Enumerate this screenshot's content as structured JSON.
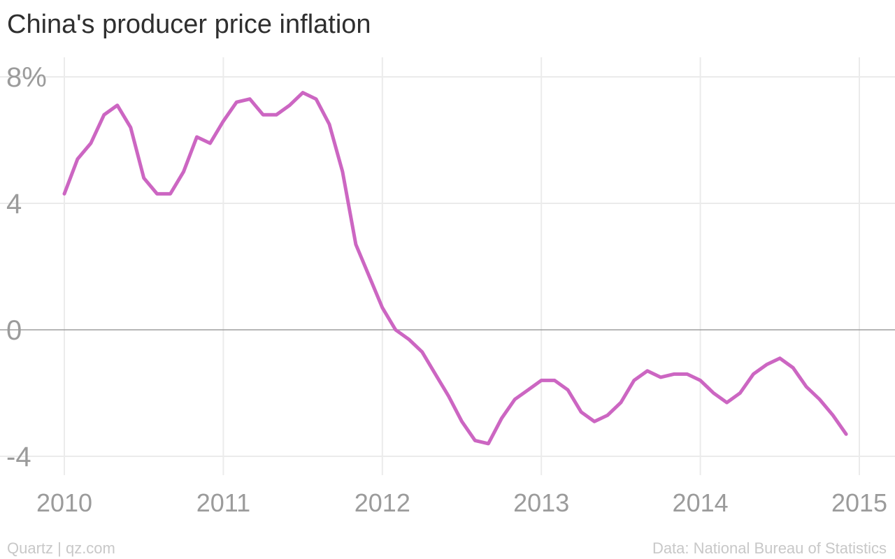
{
  "title": "China's producer price inflation",
  "footer": {
    "credit": "Quartz | qz.com",
    "source": "Data: National Bureau of Statistics"
  },
  "colors": {
    "line": "#cc66c2",
    "grid": "#ebebeb",
    "zero_line": "#9e9e9e",
    "tick_text": "#9b9b9b",
    "title_text": "#2f2f2f",
    "footer_text": "#c8c8c8"
  },
  "chart_data": {
    "type": "line",
    "title": "China's producer price inflation",
    "xlabel": "",
    "ylabel": "",
    "xlim": [
      2010.0,
      2015.0
    ],
    "ylim": [
      -4.7,
      8.0
    ],
    "grid": true,
    "legend": "none",
    "x_ticks": [
      {
        "value": 2010,
        "label": "2010"
      },
      {
        "value": 2011,
        "label": "2011"
      },
      {
        "value": 2012,
        "label": "2012"
      },
      {
        "value": 2013,
        "label": "2013"
      },
      {
        "value": 2014,
        "label": "2014"
      },
      {
        "value": 2015,
        "label": "2015"
      }
    ],
    "y_ticks": [
      {
        "value": 8,
        "label": "8%"
      },
      {
        "value": 4,
        "label": "4"
      },
      {
        "value": 0,
        "label": "0"
      },
      {
        "value": -4,
        "label": "-4"
      }
    ],
    "series": [
      {
        "x": [
          "2010-01",
          "2010-02",
          "2010-03",
          "2010-04",
          "2010-05",
          "2010-06",
          "2010-07",
          "2010-08",
          "2010-09",
          "2010-10",
          "2010-11",
          "2010-12",
          "2011-01",
          "2011-02",
          "2011-03",
          "2011-04",
          "2011-05",
          "2011-06",
          "2011-07",
          "2011-08",
          "2011-09",
          "2011-10",
          "2011-11",
          "2011-12",
          "2012-01",
          "2012-02",
          "2012-03",
          "2012-04",
          "2012-05",
          "2012-06",
          "2012-07",
          "2012-08",
          "2012-09",
          "2012-10",
          "2012-11",
          "2012-12",
          "2013-01",
          "2013-02",
          "2013-03",
          "2013-04",
          "2013-05",
          "2013-06",
          "2013-07",
          "2013-08",
          "2013-09",
          "2013-10",
          "2013-11",
          "2013-12",
          "2014-01",
          "2014-02",
          "2014-03",
          "2014-04",
          "2014-05",
          "2014-06",
          "2014-07",
          "2014-08",
          "2014-09",
          "2014-10",
          "2014-11",
          "2014-12"
        ],
        "values": [
          4.3,
          5.4,
          5.9,
          6.8,
          7.1,
          6.4,
          4.8,
          4.3,
          4.3,
          5.0,
          6.1,
          5.9,
          6.6,
          7.2,
          7.3,
          6.8,
          6.8,
          7.1,
          7.5,
          7.3,
          6.5,
          5.0,
          2.7,
          1.7,
          0.7,
          0.0,
          -0.3,
          -0.7,
          -1.4,
          -2.1,
          -2.9,
          -3.5,
          -3.6,
          -2.8,
          -2.2,
          -1.9,
          -1.6,
          -1.6,
          -1.9,
          -2.6,
          -2.9,
          -2.7,
          -2.3,
          -1.6,
          -1.3,
          -1.5,
          -1.4,
          -1.4,
          -1.6,
          -2.0,
          -2.3,
          -2.0,
          -1.4,
          -1.1,
          -0.9,
          -1.2,
          -1.8,
          -2.2,
          -2.7,
          -3.3
        ]
      }
    ]
  }
}
